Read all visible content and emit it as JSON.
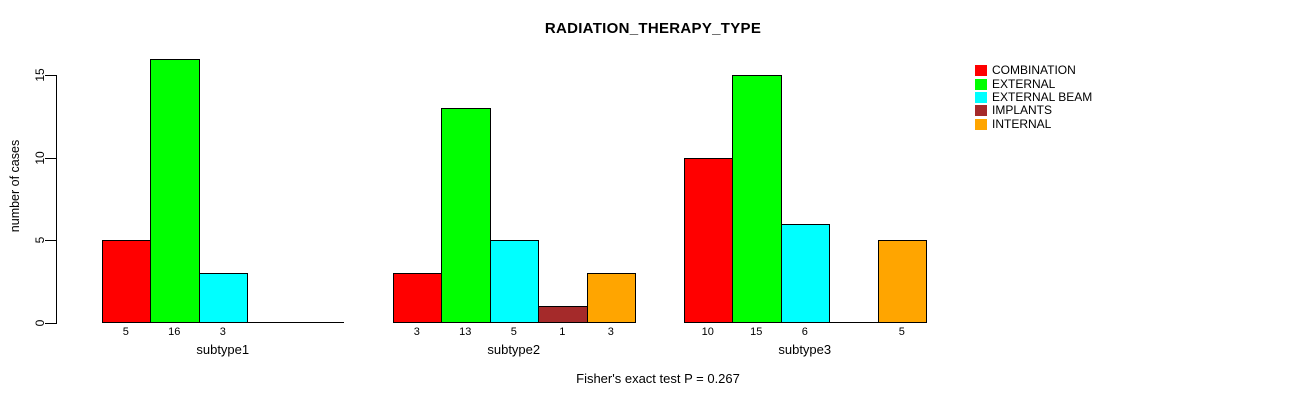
{
  "chart_data": {
    "type": "bar",
    "title": "RADIATION_THERAPY_TYPE",
    "ylabel": "number of cases",
    "xlabel": "",
    "categories": [
      "subtype1",
      "subtype2",
      "subtype3"
    ],
    "series": [
      {
        "name": "COMBINATION",
        "color": "#ff0000",
        "values": [
          5,
          3,
          10
        ]
      },
      {
        "name": "EXTERNAL",
        "color": "#00ff00",
        "values": [
          16,
          13,
          15
        ]
      },
      {
        "name": "EXTERNAL BEAM",
        "color": "#00ffff",
        "values": [
          3,
          5,
          6
        ]
      },
      {
        "name": "IMPLANTS",
        "color": "#a52a2a",
        "values": [
          0,
          1,
          0
        ]
      },
      {
        "name": "INTERNAL",
        "color": "#ffa500",
        "values": [
          0,
          3,
          5
        ]
      }
    ],
    "yticks": [
      0,
      5,
      10,
      15
    ],
    "ylim": [
      0,
      16
    ],
    "grid": false,
    "legend_position": "top-right",
    "bar_value_labels_shown": true,
    "zero_value_bars_hidden": true,
    "bar_border_color": "#000000",
    "annotation": "Fisher's exact test P = 0.267"
  }
}
